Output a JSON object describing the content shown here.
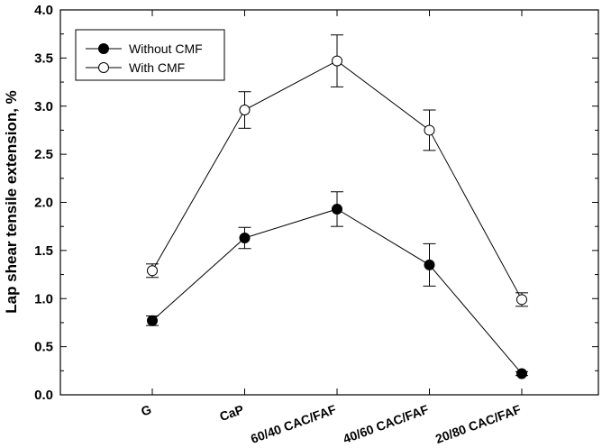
{
  "chart_data": {
    "type": "line",
    "title": "",
    "xlabel": "",
    "ylabel": "Lap shear tensile extension, %",
    "ylim": [
      0,
      4
    ],
    "yticks": [
      "0.0",
      "0.5",
      "1.0",
      "1.5",
      "2.0",
      "2.5",
      "3.0",
      "3.5",
      "4.0"
    ],
    "categories": [
      "G",
      "CaP",
      "60/40 CAC/FAF",
      "40/60 CAC/FAF",
      "20/80 CAC/FAF"
    ],
    "grid": false,
    "legend_position": "top-left",
    "series": [
      {
        "name": "Without CMF",
        "marker": "filled-circle",
        "values": [
          0.77,
          1.63,
          1.93,
          1.35,
          0.22
        ],
        "errors": [
          0.05,
          0.11,
          0.18,
          0.22,
          0.02
        ]
      },
      {
        "name": "With CMF",
        "marker": "open-circle",
        "values": [
          1.29,
          2.96,
          3.47,
          2.75,
          0.99
        ],
        "errors": [
          0.07,
          0.19,
          0.27,
          0.21,
          0.07
        ]
      }
    ]
  }
}
